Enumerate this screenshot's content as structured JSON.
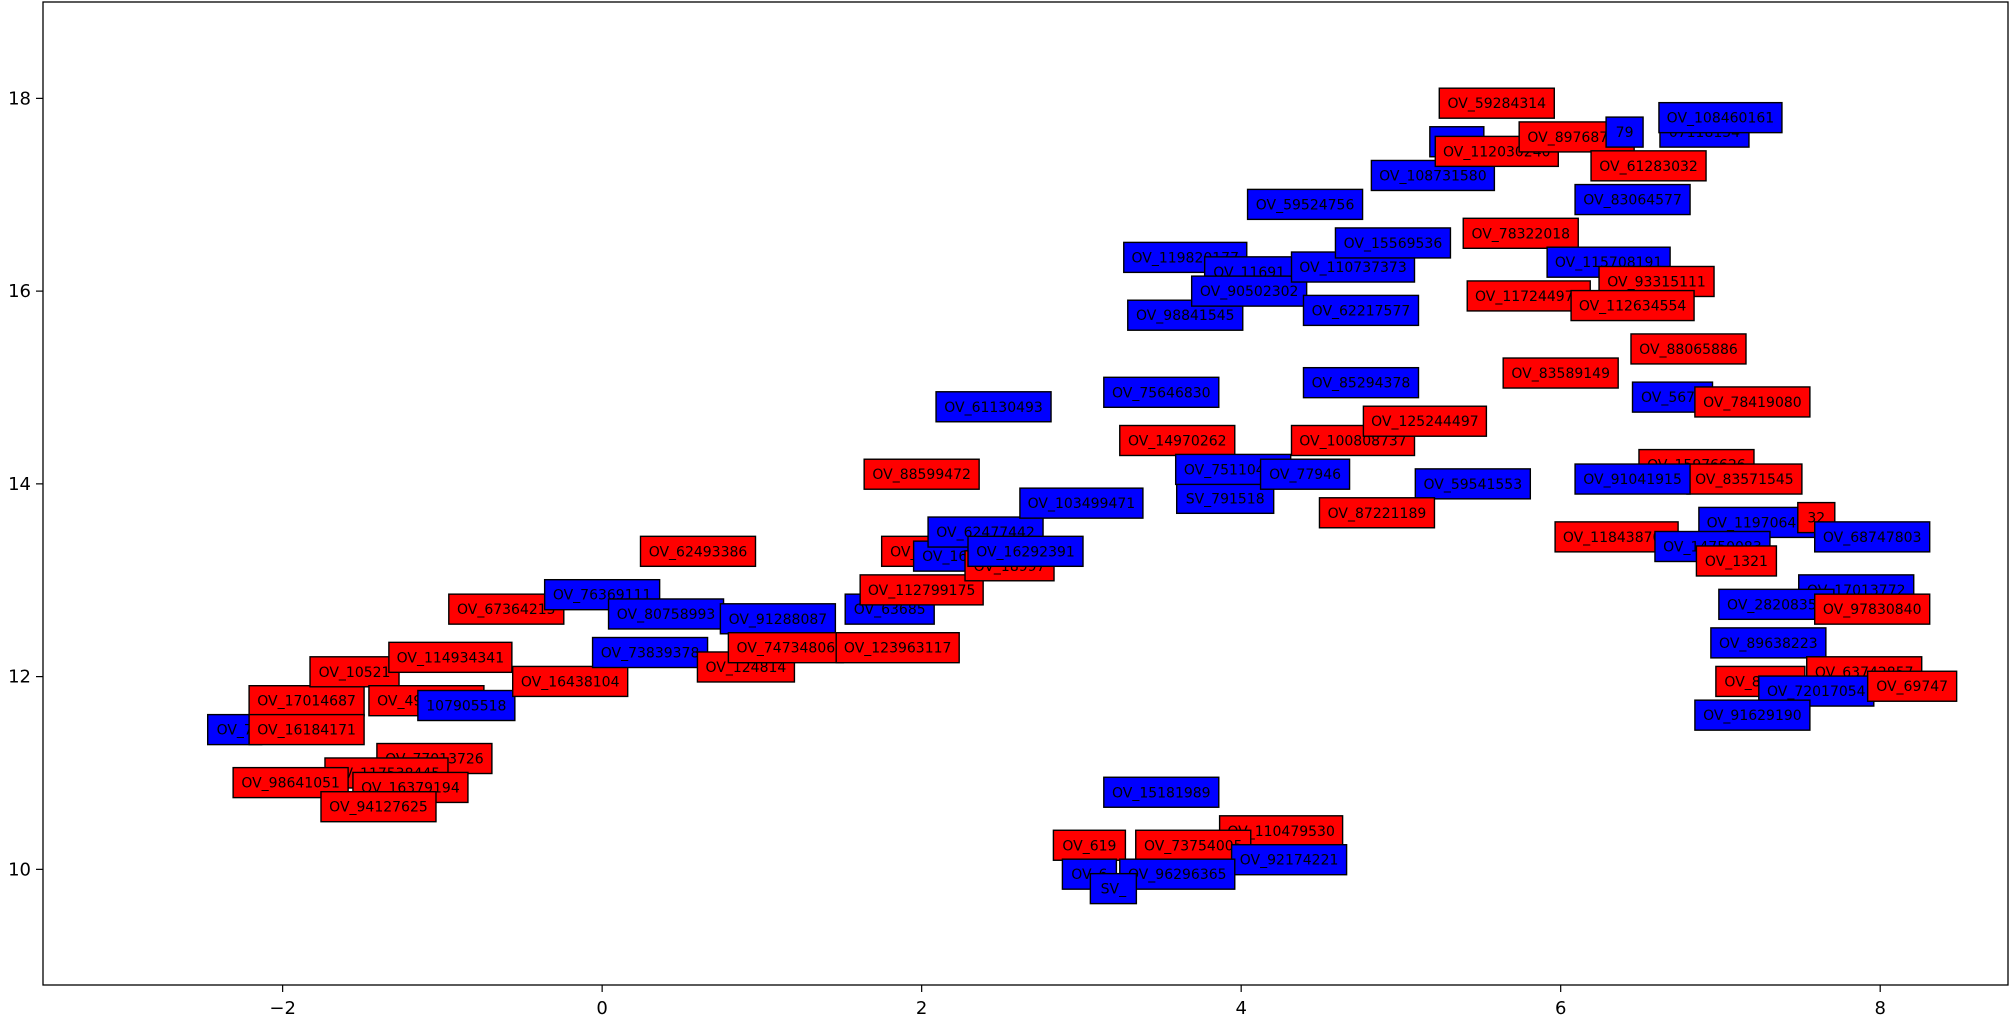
{
  "chart_data": {
    "type": "scatter",
    "title": "",
    "xlabel": "",
    "ylabel": "",
    "xlim": [
      -3.5,
      8.8
    ],
    "ylim": [
      8.8,
      19.0
    ],
    "x_ticks": [
      -2,
      0,
      2,
      4,
      6,
      8
    ],
    "y_ticks": [
      10,
      12,
      14,
      16,
      18
    ],
    "x_tick_labels": [
      "−2",
      "0",
      "2",
      "4",
      "6",
      "8"
    ],
    "y_tick_labels": [
      "10",
      "12",
      "14",
      "16",
      "18"
    ],
    "grid": false,
    "legend": "none",
    "colors": {
      "blue": "#0000ff",
      "red": "#ff0000"
    },
    "points": [
      {
        "x": -2.3,
        "y": 11.45,
        "label": "OV_7",
        "color": "blue"
      },
      {
        "x": -1.85,
        "y": 11.75,
        "label": "OV_17014687",
        "color": "red"
      },
      {
        "x": -1.55,
        "y": 12.05,
        "label": "OV_10521",
        "color": "red"
      },
      {
        "x": -1.1,
        "y": 11.75,
        "label": "OV_49903340",
        "color": "red"
      },
      {
        "x": -0.85,
        "y": 11.7,
        "label": "107905518",
        "color": "blue"
      },
      {
        "x": -1.85,
        "y": 11.45,
        "label": "OV_16184171",
        "color": "red"
      },
      {
        "x": -1.05,
        "y": 11.15,
        "label": "OV_77013726",
        "color": "red"
      },
      {
        "x": -1.35,
        "y": 11.0,
        "label": "OV_117538445",
        "color": "red"
      },
      {
        "x": -1.95,
        "y": 10.9,
        "label": "OV_98641051",
        "color": "red"
      },
      {
        "x": -1.2,
        "y": 10.85,
        "label": "OV_16379194",
        "color": "red"
      },
      {
        "x": -1.4,
        "y": 10.65,
        "label": "OV_94127625",
        "color": "red"
      },
      {
        "x": -0.95,
        "y": 12.2,
        "label": "OV_114934341",
        "color": "red"
      },
      {
        "x": -0.2,
        "y": 11.95,
        "label": "OV_16438104",
        "color": "red"
      },
      {
        "x": -0.6,
        "y": 12.7,
        "label": "OV_67364215",
        "color": "red"
      },
      {
        "x": 0.0,
        "y": 12.85,
        "label": "OV_76369111",
        "color": "blue"
      },
      {
        "x": 0.3,
        "y": 12.25,
        "label": "OV_73839378",
        "color": "blue"
      },
      {
        "x": 0.4,
        "y": 12.65,
        "label": "OV_80758993",
        "color": "blue"
      },
      {
        "x": 1.1,
        "y": 12.6,
        "label": "OV_91288087",
        "color": "blue"
      },
      {
        "x": 0.9,
        "y": 12.1,
        "label": "OV_124814",
        "color": "red"
      },
      {
        "x": 1.15,
        "y": 12.3,
        "label": "OV_74734806",
        "color": "red"
      },
      {
        "x": 0.6,
        "y": 13.3,
        "label": "OV_62493386",
        "color": "red"
      },
      {
        "x": 1.8,
        "y": 12.7,
        "label": "OV_63685",
        "color": "blue"
      },
      {
        "x": 1.85,
        "y": 12.3,
        "label": "OV_123963117",
        "color": "red"
      },
      {
        "x": 2.0,
        "y": 12.9,
        "label": "OV_112799175",
        "color": "red"
      },
      {
        "x": 2.0,
        "y": 13.3,
        "label": "OV_1627",
        "color": "red"
      },
      {
        "x": 2.2,
        "y": 13.25,
        "label": "OV_1627",
        "color": "blue"
      },
      {
        "x": 2.4,
        "y": 13.5,
        "label": "OV_62477442",
        "color": "blue"
      },
      {
        "x": 2.55,
        "y": 13.15,
        "label": "OV_18997",
        "color": "red"
      },
      {
        "x": 2.65,
        "y": 13.3,
        "label": "OV_16292391",
        "color": "blue"
      },
      {
        "x": 2.0,
        "y": 14.1,
        "label": "OV_88599472",
        "color": "red"
      },
      {
        "x": 2.45,
        "y": 14.8,
        "label": "OV_61130493",
        "color": "blue"
      },
      {
        "x": 3.5,
        "y": 14.95,
        "label": "OV_75646830",
        "color": "blue"
      },
      {
        "x": 3.0,
        "y": 13.8,
        "label": "OV_103499471",
        "color": "blue"
      },
      {
        "x": 3.9,
        "y": 13.85,
        "label": "SV_791518",
        "color": "blue"
      },
      {
        "x": 3.6,
        "y": 14.45,
        "label": "OV_14970262",
        "color": "red"
      },
      {
        "x": 3.95,
        "y": 14.15,
        "label": "OV_75110470",
        "color": "blue"
      },
      {
        "x": 4.4,
        "y": 14.1,
        "label": "OV_77946",
        "color": "blue"
      },
      {
        "x": 4.7,
        "y": 14.45,
        "label": "OV_100808737",
        "color": "red"
      },
      {
        "x": 5.15,
        "y": 14.65,
        "label": "OV_125244497",
        "color": "red"
      },
      {
        "x": 5.45,
        "y": 14.0,
        "label": "OV_59541553",
        "color": "blue"
      },
      {
        "x": 4.85,
        "y": 13.7,
        "label": "OV_87221189",
        "color": "red"
      },
      {
        "x": 4.75,
        "y": 15.05,
        "label": "OV_85294378",
        "color": "blue"
      },
      {
        "x": 3.65,
        "y": 15.75,
        "label": "OV_98841545",
        "color": "blue"
      },
      {
        "x": 3.65,
        "y": 16.35,
        "label": "OV_119820177",
        "color": "blue"
      },
      {
        "x": 4.05,
        "y": 16.2,
        "label": "OV_11691",
        "color": "blue"
      },
      {
        "x": 4.05,
        "y": 16.0,
        "label": "OV_90502302",
        "color": "blue"
      },
      {
        "x": 4.75,
        "y": 15.8,
        "label": "OV_62217577",
        "color": "blue"
      },
      {
        "x": 4.7,
        "y": 16.25,
        "label": "OV_110737373",
        "color": "blue"
      },
      {
        "x": 4.95,
        "y": 16.5,
        "label": "OV_15569536",
        "color": "blue"
      },
      {
        "x": 4.4,
        "y": 16.9,
        "label": "OV_59524756",
        "color": "blue"
      },
      {
        "x": 5.2,
        "y": 17.2,
        "label": "OV_108731580",
        "color": "blue"
      },
      {
        "x": 5.35,
        "y": 17.55,
        "label": "OV_5",
        "color": "blue"
      },
      {
        "x": 5.6,
        "y": 17.95,
        "label": "OV_59284314",
        "color": "red"
      },
      {
        "x": 5.6,
        "y": 17.45,
        "label": "OV_112030240",
        "color": "red"
      },
      {
        "x": 6.1,
        "y": 17.6,
        "label": "OV_89768779",
        "color": "red"
      },
      {
        "x": 6.4,
        "y": 17.65,
        "label": "79",
        "color": "blue"
      },
      {
        "x": 6.9,
        "y": 17.65,
        "label": "07118154",
        "color": "blue"
      },
      {
        "x": 7.0,
        "y": 17.8,
        "label": "OV_108460161",
        "color": "blue"
      },
      {
        "x": 6.55,
        "y": 17.3,
        "label": "OV_61283032",
        "color": "red"
      },
      {
        "x": 6.45,
        "y": 16.95,
        "label": "OV_83064577",
        "color": "blue"
      },
      {
        "x": 5.75,
        "y": 16.6,
        "label": "OV_78322018",
        "color": "red"
      },
      {
        "x": 6.3,
        "y": 16.3,
        "label": "OV_115708191",
        "color": "blue"
      },
      {
        "x": 6.6,
        "y": 16.1,
        "label": "OV_93315111",
        "color": "red"
      },
      {
        "x": 5.8,
        "y": 15.95,
        "label": "OV_117244978",
        "color": "red"
      },
      {
        "x": 6.45,
        "y": 15.85,
        "label": "OV_112634554",
        "color": "red"
      },
      {
        "x": 6.8,
        "y": 15.4,
        "label": "OV_88065886",
        "color": "red"
      },
      {
        "x": 6.0,
        "y": 15.15,
        "label": "OV_83589149",
        "color": "red"
      },
      {
        "x": 6.7,
        "y": 14.9,
        "label": "OV_5675",
        "color": "blue"
      },
      {
        "x": 7.2,
        "y": 14.85,
        "label": "OV_78419080",
        "color": "red"
      },
      {
        "x": 6.85,
        "y": 14.2,
        "label": "OV_15976626",
        "color": "red"
      },
      {
        "x": 7.15,
        "y": 14.05,
        "label": "OV_83571545",
        "color": "red"
      },
      {
        "x": 6.45,
        "y": 14.05,
        "label": "OV_91041915",
        "color": "blue"
      },
      {
        "x": 6.35,
        "y": 13.45,
        "label": "OV_118438708",
        "color": "red"
      },
      {
        "x": 7.25,
        "y": 13.6,
        "label": "OV_119706492",
        "color": "blue"
      },
      {
        "x": 7.6,
        "y": 13.65,
        "label": "32",
        "color": "red"
      },
      {
        "x": 7.95,
        "y": 13.45,
        "label": "OV_68747803",
        "color": "blue"
      },
      {
        "x": 6.95,
        "y": 13.35,
        "label": "OV_14750083",
        "color": "blue"
      },
      {
        "x": 7.1,
        "y": 13.2,
        "label": "OV_1321",
        "color": "red"
      },
      {
        "x": 7.85,
        "y": 12.9,
        "label": "OV_17013772",
        "color": "blue"
      },
      {
        "x": 7.35,
        "y": 12.75,
        "label": "OV_28208356",
        "color": "blue"
      },
      {
        "x": 7.95,
        "y": 12.7,
        "label": "OV_97830840",
        "color": "red"
      },
      {
        "x": 7.3,
        "y": 12.35,
        "label": "OV_89638223",
        "color": "blue"
      },
      {
        "x": 7.25,
        "y": 11.95,
        "label": "OV_87638",
        "color": "red"
      },
      {
        "x": 7.9,
        "y": 12.05,
        "label": "OV_63742857",
        "color": "red"
      },
      {
        "x": 7.6,
        "y": 11.85,
        "label": "OV_72017054",
        "color": "blue"
      },
      {
        "x": 8.2,
        "y": 11.9,
        "label": "OV_69747",
        "color": "red"
      },
      {
        "x": 7.2,
        "y": 11.6,
        "label": "OV_91629190",
        "color": "blue"
      },
      {
        "x": 3.5,
        "y": 10.8,
        "label": "OV_15181989",
        "color": "blue"
      },
      {
        "x": 4.25,
        "y": 10.4,
        "label": "OV_110479530",
        "color": "red"
      },
      {
        "x": 3.05,
        "y": 10.25,
        "label": "OV_619",
        "color": "red"
      },
      {
        "x": 3.7,
        "y": 10.25,
        "label": "OV_73754005",
        "color": "red"
      },
      {
        "x": 4.3,
        "y": 10.1,
        "label": "OV_92174221",
        "color": "blue"
      },
      {
        "x": 3.05,
        "y": 9.95,
        "label": "OV_6",
        "color": "blue"
      },
      {
        "x": 3.6,
        "y": 9.95,
        "label": "OV_96296365",
        "color": "blue"
      },
      {
        "x": 3.2,
        "y": 9.8,
        "label": "SV_",
        "color": "blue"
      }
    ]
  }
}
